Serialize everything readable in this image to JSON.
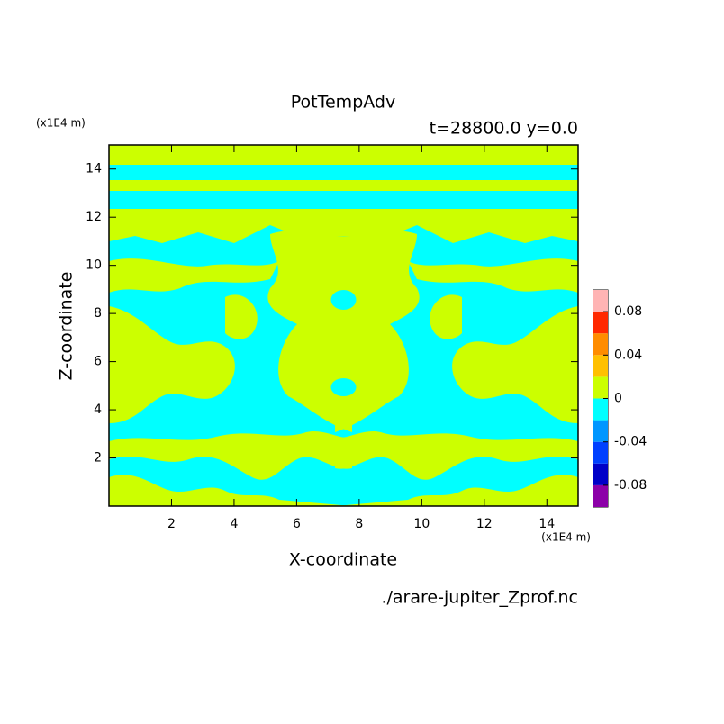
{
  "chart_data": {
    "type": "contour",
    "title": "PotTempAdv",
    "subtitle": "t=28800.0 y=0.0",
    "x_label": "X-coordinate",
    "y_label": "Z-coordinate",
    "x_unit": "(x1E4 m)",
    "y_unit": "(x1E4 m)",
    "footer": "./arare-jupiter_Zprof.nc",
    "xlim": [
      0,
      15
    ],
    "ylim": [
      0,
      15
    ],
    "xticks": [
      2,
      4,
      6,
      8,
      10,
      12,
      14
    ],
    "yticks": [
      2,
      4,
      6,
      8,
      10,
      12,
      14
    ],
    "colorbar": {
      "levels": [
        -0.1,
        -0.08,
        -0.06,
        -0.04,
        -0.02,
        0,
        0.02,
        0.04,
        0.06,
        0.08,
        0.1
      ],
      "colors": [
        "#8c00a8",
        "#0000c8",
        "#0040ff",
        "#0096ff",
        "#00ffff",
        "#ccff00",
        "#ffc000",
        "#ff8c00",
        "#ff2800",
        "#ffb4b4"
      ],
      "ticks": [
        -0.08,
        -0.04,
        0,
        0.04,
        0.08
      ]
    }
  }
}
